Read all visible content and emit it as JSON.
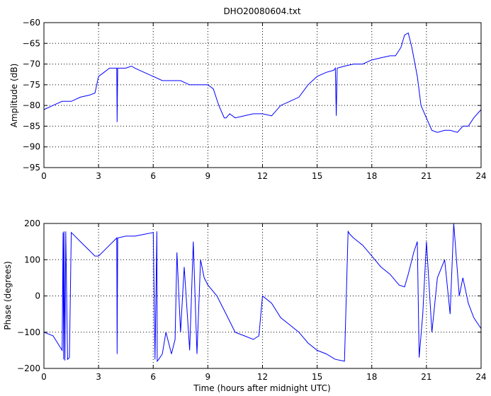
{
  "chart_data": [
    {
      "type": "line",
      "title": "DHO20080604.txt",
      "xlabel": "",
      "ylabel": "Amplitude (dB)",
      "xlim": [
        0,
        24
      ],
      "ylim": [
        -95,
        -60
      ],
      "x_ticks": [
        0,
        3,
        6,
        9,
        12,
        15,
        18,
        21,
        24
      ],
      "x_tick_labels": [
        "0",
        "3",
        "6",
        "9",
        "12",
        "15",
        "18",
        "21",
        "24"
      ],
      "y_ticks": [
        -95,
        -90,
        -85,
        -80,
        -75,
        -70,
        -65,
        -60
      ],
      "y_tick_labels": [
        "−95",
        "−90",
        "−85",
        "−80",
        "−75",
        "−70",
        "−65",
        "−60"
      ],
      "grid": true,
      "color": "#0000ff",
      "series": [
        {
          "x": [
            0,
            0.5,
            1.0,
            1.5,
            2.0,
            2.5,
            2.8,
            3.0,
            3.3,
            3.6,
            3.9,
            4.0,
            4.02,
            4.05,
            4.1,
            4.5,
            4.8,
            5.0,
            5.5,
            6.0,
            6.5,
            7.0,
            7.5,
            8.0,
            8.5,
            9.0,
            9.3,
            9.6,
            9.9,
            10.0,
            10.2,
            10.5,
            11.0,
            11.5,
            12.0,
            12.5,
            13.0,
            13.5,
            14.0,
            14.5,
            15.0,
            15.5,
            15.9,
            16.0,
            16.05,
            16.1,
            16.5,
            17.0,
            17.5,
            18.0,
            18.5,
            19.0,
            19.3,
            19.6,
            19.8,
            20.0,
            20.2,
            20.5,
            20.7,
            20.9,
            21.1,
            21.3,
            21.6,
            22.0,
            22.3,
            22.7,
            23.0,
            23.3,
            23.6,
            24.0
          ],
          "y": [
            -81,
            -80,
            -79,
            -79,
            -78,
            -77.5,
            -77,
            -73,
            -72,
            -71,
            -71,
            -71,
            -84,
            -71,
            -71,
            -71,
            -70.5,
            -71,
            -72,
            -73,
            -74,
            -74,
            -74,
            -75,
            -75,
            -75,
            -76,
            -80,
            -83,
            -83,
            -82,
            -83,
            -82.5,
            -82,
            -82,
            -82.5,
            -80,
            -79,
            -78,
            -75,
            -73,
            -72,
            -71.5,
            -71,
            -82.5,
            -71,
            -70.5,
            -70,
            -70,
            -69,
            -68.5,
            -68,
            -68,
            -66,
            -63,
            -62.5,
            -66,
            -73,
            -80,
            -82,
            -84,
            -86,
            -86.5,
            -86,
            -86,
            -86.5,
            -85,
            -85,
            -83,
            -81
          ]
        }
      ]
    },
    {
      "type": "line",
      "title": "",
      "xlabel": "Time (hours after midnight UTC)",
      "ylabel": "Phase (degrees)",
      "xlim": [
        0,
        24
      ],
      "ylim": [
        -200,
        200
      ],
      "x_ticks": [
        0,
        3,
        6,
        9,
        12,
        15,
        18,
        21,
        24
      ],
      "x_tick_labels": [
        "0",
        "3",
        "6",
        "9",
        "12",
        "15",
        "18",
        "21",
        "24"
      ],
      "y_ticks": [
        -200,
        -100,
        0,
        100,
        200
      ],
      "y_tick_labels": [
        "−200",
        "−100",
        "0",
        "100",
        "200"
      ],
      "grid": true,
      "color": "#0000ff",
      "series": [
        {
          "x": [
            0,
            0.5,
            1.0,
            1.05,
            1.08,
            1.1,
            1.15,
            1.2,
            1.3,
            1.4,
            1.5,
            2.0,
            2.5,
            2.8,
            3.0,
            3.5,
            4.0,
            4.02,
            4.05,
            4.5,
            5.0,
            5.5,
            6.0,
            6.1,
            6.2,
            6.22,
            6.3,
            6.5,
            6.7,
            7.0,
            7.2,
            7.3,
            7.5,
            7.7,
            8.0,
            8.2,
            8.4,
            8.6,
            8.8,
            9.0,
            9.5,
            10.0,
            10.5,
            11.0,
            11.5,
            11.8,
            12.0,
            12.5,
            13.0,
            13.5,
            14.0,
            14.5,
            15.0,
            15.5,
            16.0,
            16.5,
            16.7,
            16.8,
            17.0,
            17.5,
            18.0,
            18.5,
            19.0,
            19.5,
            19.8,
            20.0,
            20.3,
            20.5,
            20.6,
            20.8,
            21.0,
            21.3,
            21.6,
            22.0,
            22.3,
            22.5,
            22.8,
            23.0,
            23.3,
            23.6,
            24.0
          ],
          "y": [
            -100,
            -110,
            -150,
            175,
            -175,
            178,
            -178,
            178,
            -175,
            -170,
            175,
            150,
            125,
            110,
            110,
            135,
            160,
            -160,
            160,
            165,
            165,
            170,
            175,
            -175,
            178,
            -180,
            -175,
            -160,
            -100,
            -160,
            -120,
            120,
            -100,
            80,
            -150,
            150,
            -160,
            100,
            50,
            30,
            0,
            -50,
            -100,
            -110,
            -120,
            -110,
            0,
            -20,
            -60,
            -80,
            -100,
            -130,
            -150,
            -160,
            -175,
            -180,
            178,
            170,
            160,
            140,
            110,
            80,
            60,
            30,
            25,
            60,
            120,
            150,
            -170,
            -50,
            150,
            -100,
            50,
            100,
            -50,
            200,
            0,
            50,
            -20,
            -60,
            -90
          ]
        }
      ]
    }
  ]
}
